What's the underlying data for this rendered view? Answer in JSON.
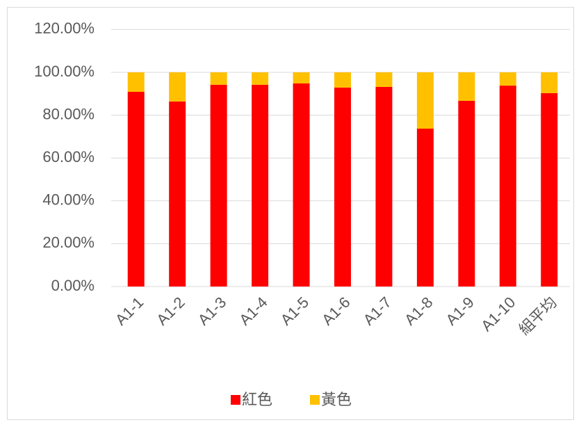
{
  "chart_data": {
    "type": "stacked_bar",
    "categories": [
      "A1-1",
      "A1-2",
      "A1-3",
      "A1-4",
      "A1-5",
      "A1-6",
      "A1-7",
      "A1-8",
      "A1-9",
      "A1-10",
      "組平均"
    ],
    "series": [
      {
        "name": "紅色",
        "color": "#ff0000",
        "values": [
          90.9,
          86.4,
          94.2,
          94.2,
          94.8,
          92.9,
          93.2,
          73.7,
          86.7,
          93.8,
          90.3
        ]
      },
      {
        "name": "黃色",
        "color": "#ffc000",
        "values": [
          9.1,
          13.6,
          5.8,
          5.8,
          5.2,
          7.1,
          6.8,
          26.3,
          13.3,
          6.2,
          9.7
        ]
      }
    ],
    "ylim": [
      0,
      120
    ],
    "yticks": [
      {
        "value": 0,
        "label": "0.00%"
      },
      {
        "value": 20,
        "label": "20.00%"
      },
      {
        "value": 40,
        "label": "40.00%"
      },
      {
        "value": 60,
        "label": "60.00%"
      },
      {
        "value": 80,
        "label": "80.00%"
      },
      {
        "value": 100,
        "label": "100.00%"
      },
      {
        "value": 120,
        "label": "120.00%"
      }
    ],
    "grid": true,
    "legend": "bottom"
  }
}
